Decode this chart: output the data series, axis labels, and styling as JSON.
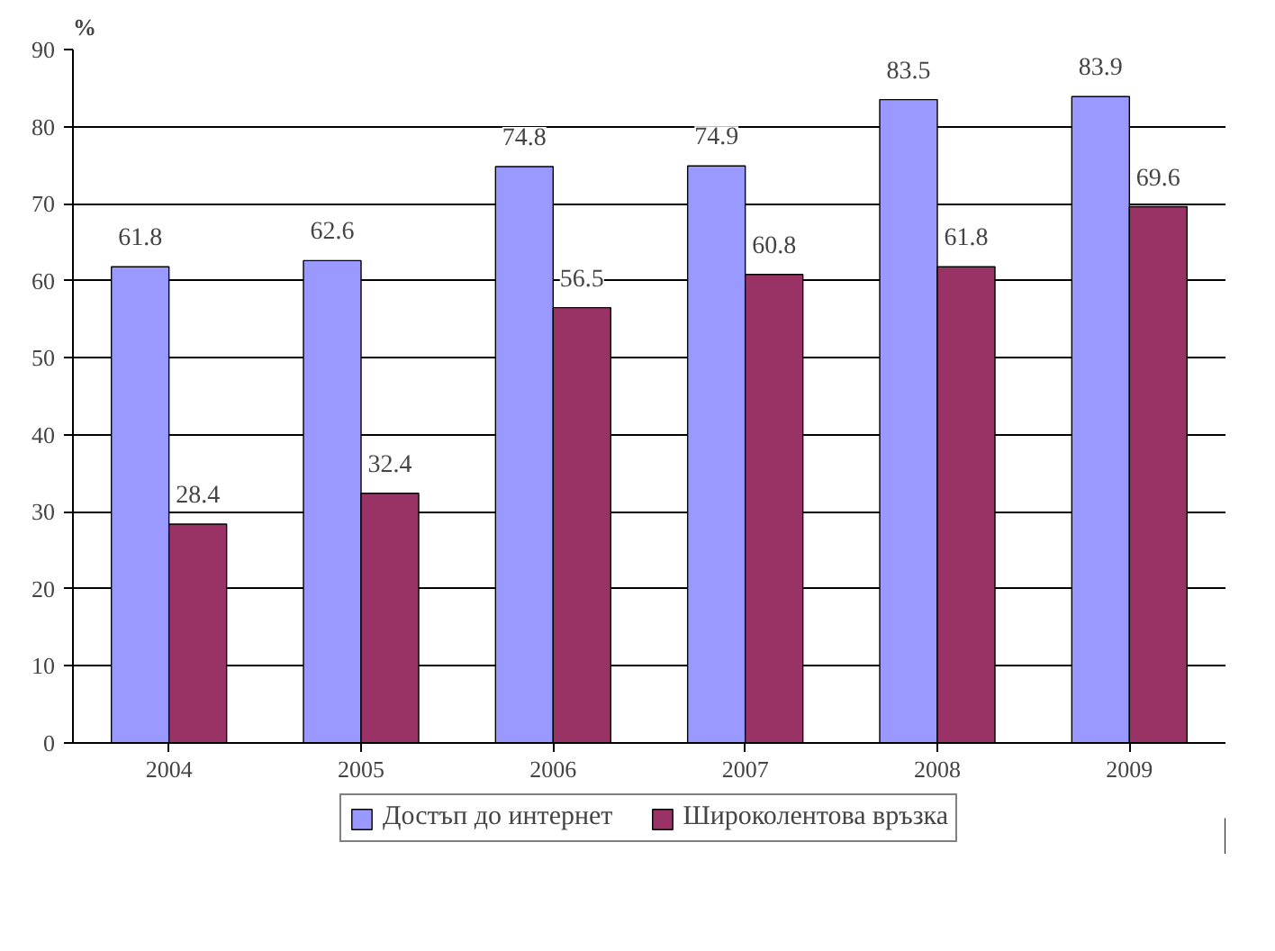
{
  "chart_data": {
    "type": "bar",
    "ylabel": "%",
    "categories": [
      "2004",
      "2005",
      "2006",
      "2007",
      "2008",
      "2009"
    ],
    "series": [
      {
        "name": "Достъп до интернет",
        "color": "#9999ff",
        "values": [
          61.8,
          62.6,
          74.8,
          74.9,
          83.5,
          83.9
        ]
      },
      {
        "name": "Широколентова връзка",
        "color": "#993366",
        "values": [
          28.4,
          32.4,
          56.5,
          60.8,
          61.8,
          69.6
        ]
      }
    ],
    "ylim": [
      0,
      90
    ],
    "yticks": [
      0,
      10,
      20,
      30,
      40,
      50,
      60,
      70,
      80,
      90
    ],
    "grid": "y",
    "legend": "bottom",
    "data_labels": true
  }
}
